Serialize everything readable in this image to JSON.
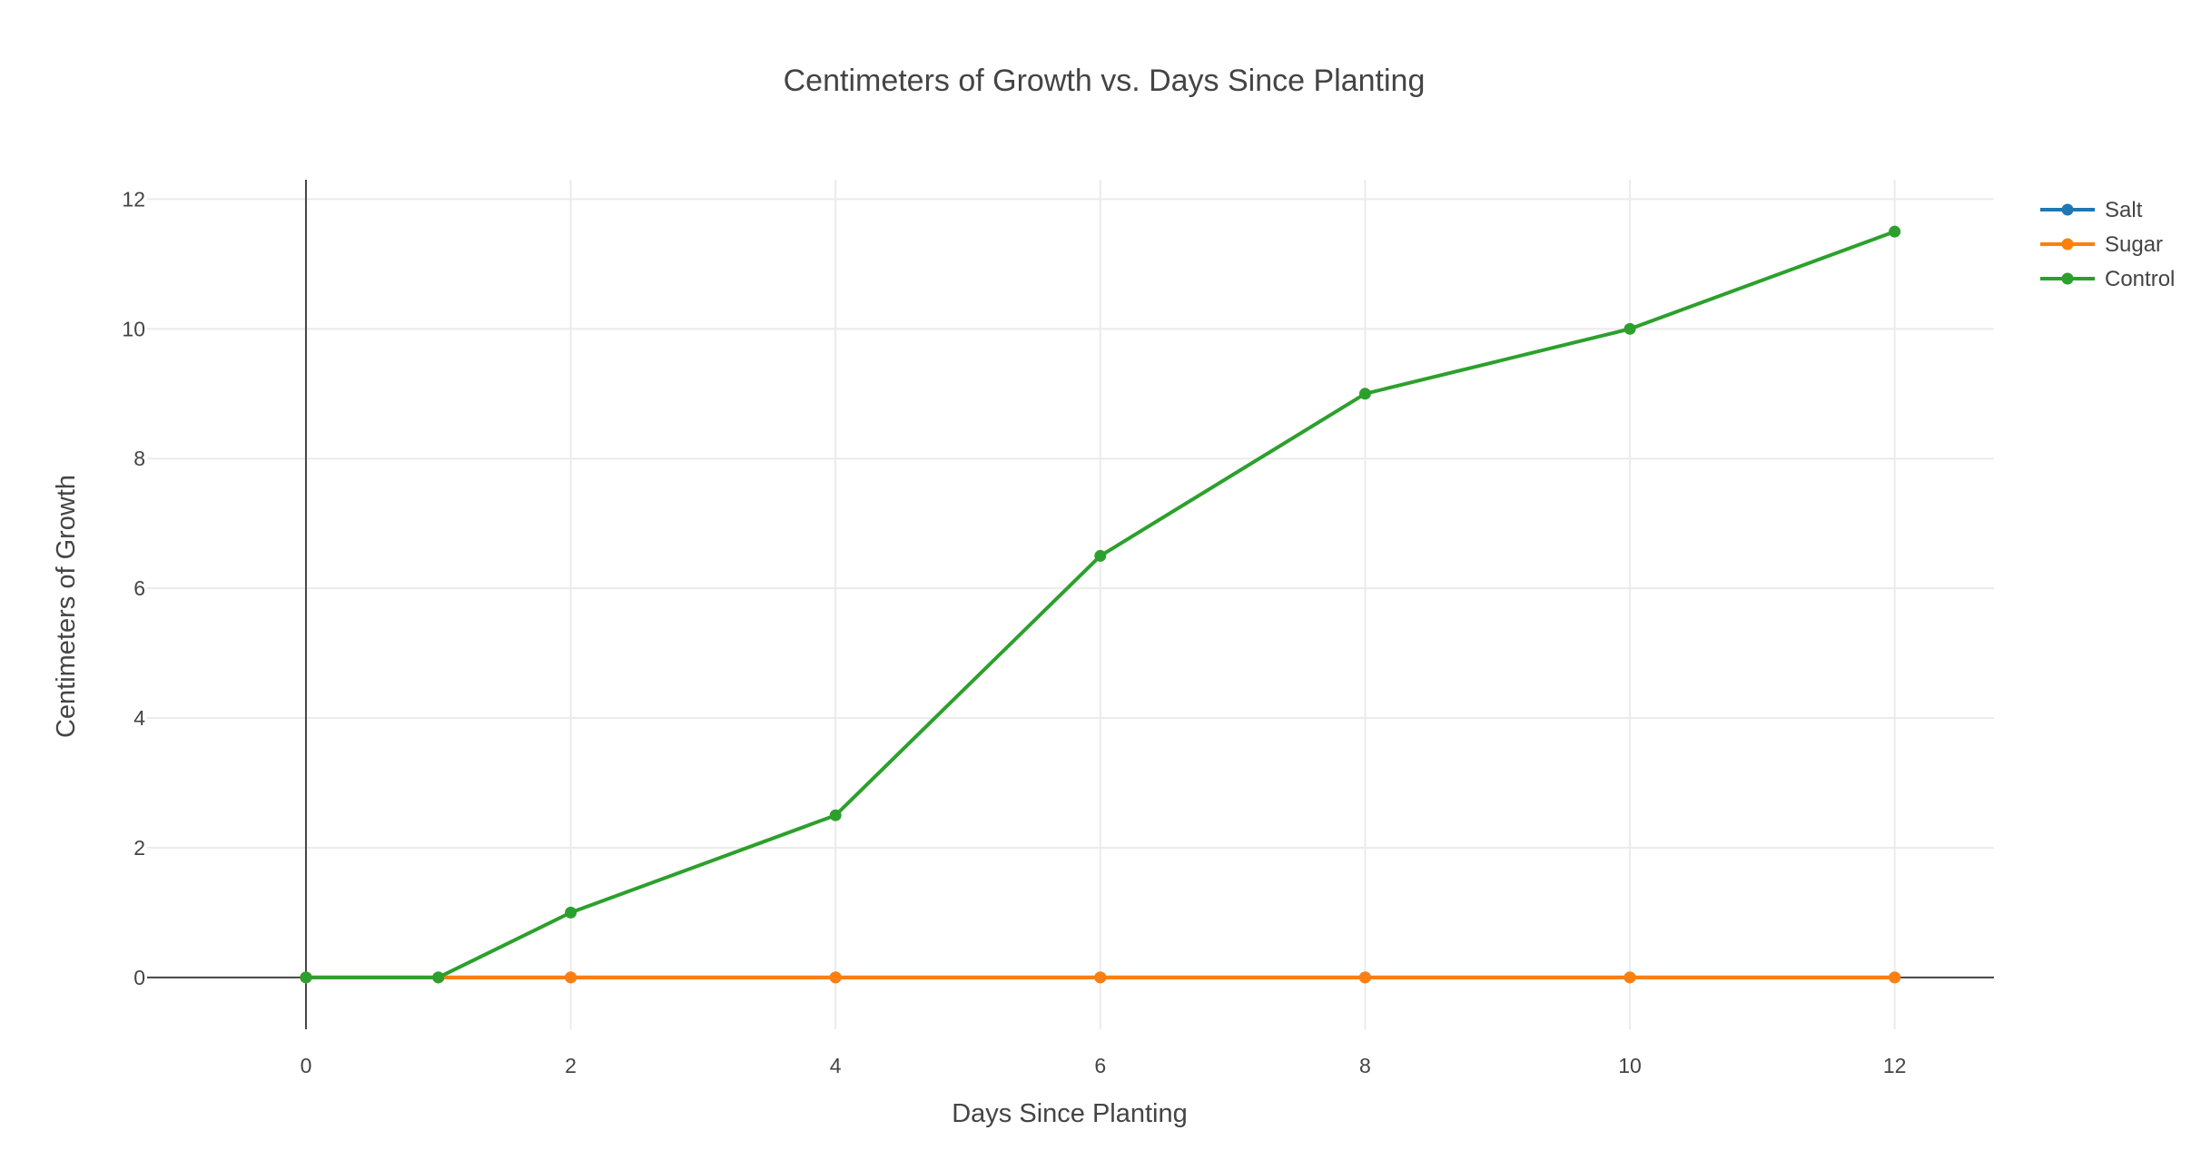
{
  "chart_data": {
    "type": "line",
    "title": "Centimeters of Growth vs. Days Since Planting",
    "xlabel": "Days Since Planting",
    "ylabel": "Centimeters of Growth",
    "xlim": [
      -1.2,
      12.75
    ],
    "ylim": [
      -0.8,
      12.3
    ],
    "x_ticks": [
      0,
      2,
      4,
      6,
      8,
      10,
      12
    ],
    "y_ticks": [
      0,
      2,
      4,
      6,
      8,
      10,
      12
    ],
    "grid": true,
    "legend_position": "top-right",
    "series": [
      {
        "name": "Salt",
        "color": "#1f77b4",
        "x": [
          0,
          1,
          2,
          4,
          6,
          8,
          10,
          12
        ],
        "y": [
          0,
          0,
          0,
          0,
          0,
          0,
          0,
          0
        ]
      },
      {
        "name": "Sugar",
        "color": "#ff7f0e",
        "x": [
          0,
          1,
          2,
          4,
          6,
          8,
          10,
          12
        ],
        "y": [
          0,
          0,
          0,
          0,
          0,
          0,
          0,
          0
        ]
      },
      {
        "name": "Control",
        "color": "#2ca02c",
        "x": [
          0,
          1,
          2,
          4,
          6,
          8,
          10,
          12
        ],
        "y": [
          0,
          0,
          1,
          2.5,
          6.5,
          9,
          10,
          11.5
        ]
      }
    ]
  }
}
